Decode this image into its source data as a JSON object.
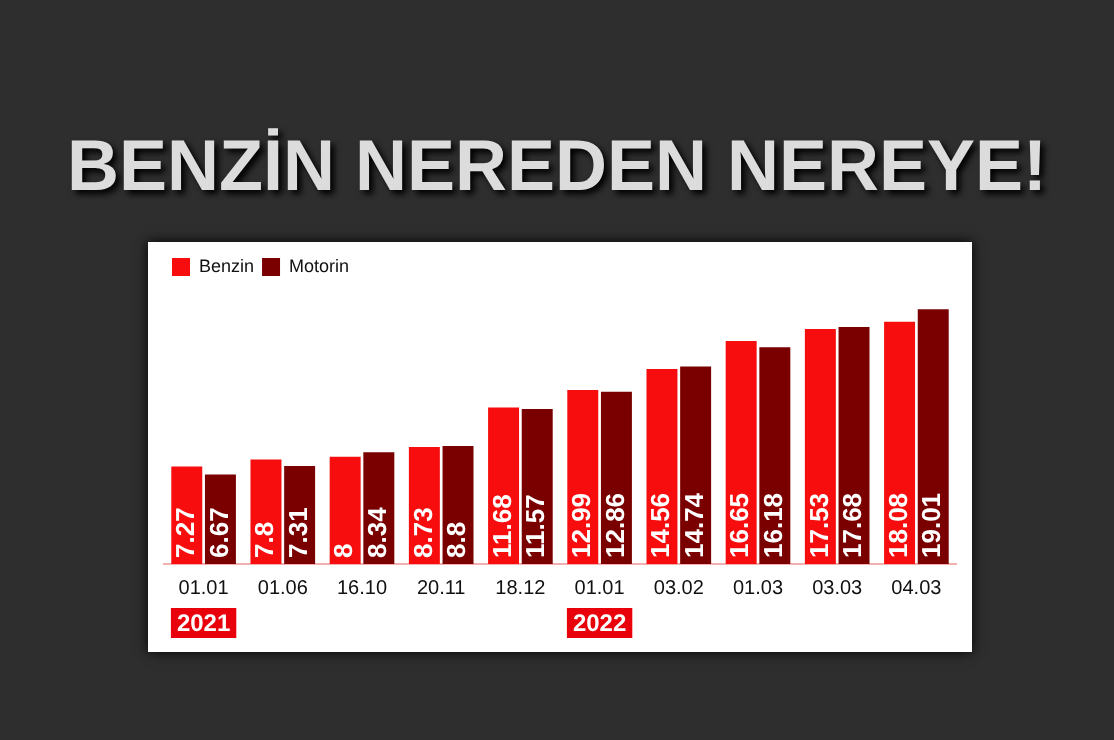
{
  "chart_data": {
    "type": "bar",
    "title": "BENZİN NEREDEN NEREYE!",
    "categories": [
      "01.01",
      "01.06",
      "16.10",
      "20.11",
      "18.12",
      "01.01",
      "03.02",
      "01.03",
      "03.03",
      "04.03"
    ],
    "series": [
      {
        "name": "Benzin",
        "color": "#f70d0d",
        "values": [
          7.27,
          7.8,
          8,
          8.73,
          11.68,
          12.99,
          14.56,
          16.65,
          17.53,
          18.08
        ]
      },
      {
        "name": "Motorin",
        "color": "#7a0000",
        "values": [
          6.67,
          7.31,
          8.34,
          8.8,
          11.57,
          12.86,
          14.74,
          16.18,
          17.68,
          19.01
        ]
      }
    ],
    "annotations": [
      "2021",
      "2022"
    ],
    "data_labels": true,
    "legend": "top left",
    "grid": false
  }
}
